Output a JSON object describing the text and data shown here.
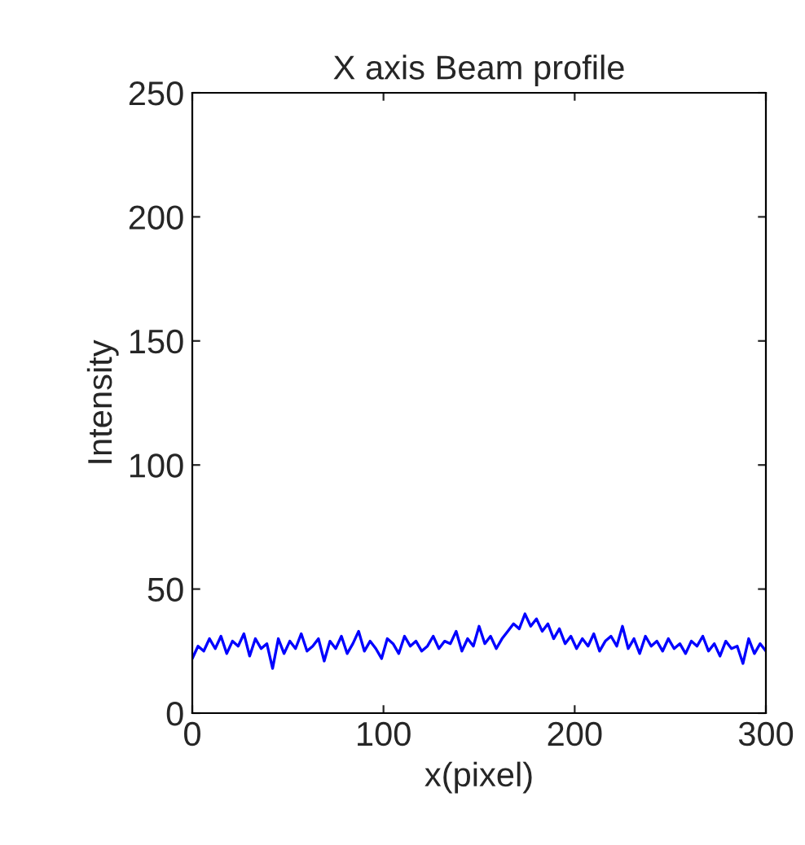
{
  "chart_data": {
    "type": "line",
    "title": "X axis Beam profile",
    "xlabel": "x(pixel)",
    "ylabel": "Intensity",
    "series": [
      {
        "color": "#0000ff",
        "x": [
          0,
          3,
          6,
          9,
          12,
          15,
          18,
          21,
          24,
          27,
          30,
          33,
          36,
          39,
          42,
          45,
          48,
          51,
          54,
          57,
          60,
          63,
          66,
          69,
          72,
          75,
          78,
          81,
          84,
          87,
          90,
          93,
          96,
          99,
          102,
          105,
          108,
          111,
          114,
          117,
          120,
          123,
          126,
          129,
          132,
          135,
          138,
          141,
          144,
          147,
          150,
          153,
          156,
          159,
          162,
          165,
          168,
          171,
          174,
          177,
          180,
          183,
          186,
          189,
          192,
          195,
          198,
          201,
          204,
          207,
          210,
          213,
          216,
          219,
          222,
          225,
          228,
          231,
          234,
          237,
          240,
          243,
          246,
          249,
          252,
          255,
          258,
          261,
          264,
          267,
          270,
          273,
          276,
          279,
          282,
          285,
          288,
          291,
          294,
          297,
          300
        ],
        "values": [
          22,
          27,
          25,
          30,
          26,
          31,
          24,
          29,
          27,
          32,
          23,
          30,
          26,
          28,
          18,
          30,
          24,
          29,
          26,
          32,
          25,
          27,
          30,
          21,
          29,
          26,
          31,
          24,
          28,
          33,
          25,
          29,
          26,
          22,
          30,
          28,
          24,
          31,
          27,
          29,
          25,
          27,
          31,
          26,
          29,
          28,
          33,
          25,
          30,
          27,
          35,
          28,
          31,
          26,
          30,
          33,
          36,
          34,
          40,
          35,
          38,
          33,
          36,
          30,
          34,
          28,
          31,
          26,
          30,
          27,
          32,
          25,
          29,
          31,
          27,
          35,
          26,
          30,
          24,
          31,
          27,
          29,
          25,
          30,
          26,
          28,
          24,
          29,
          27,
          31,
          25,
          28,
          23,
          29,
          26,
          27,
          20,
          30,
          24,
          28,
          25
        ]
      }
    ],
    "xlim": [
      0,
      300
    ],
    "ylim": [
      0,
      250
    ],
    "xticks": [
      0,
      100,
      200,
      300
    ],
    "yticks": [
      0,
      50,
      100,
      150,
      200,
      250
    ],
    "grid": false
  }
}
